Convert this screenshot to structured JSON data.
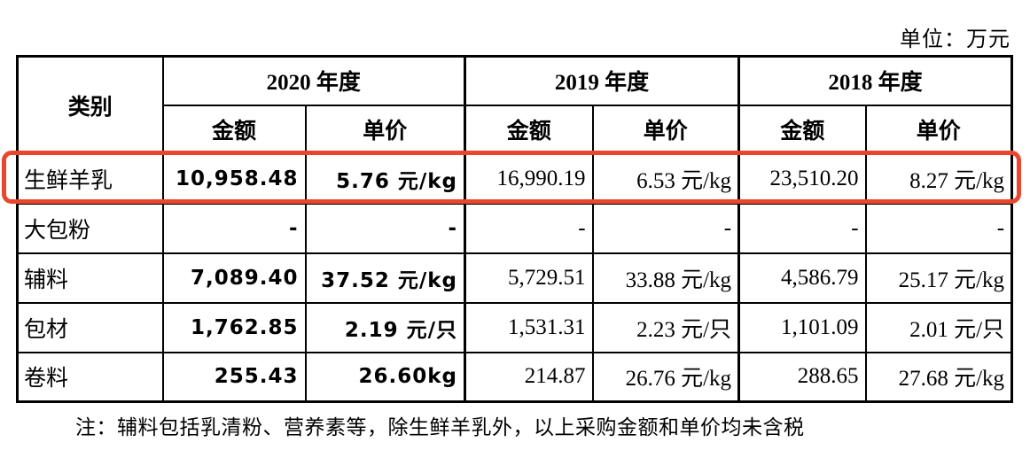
{
  "unit_label": "单位：万元",
  "highlight": {
    "color": "#e8472e",
    "target_row": "生鲜羊乳"
  },
  "table": {
    "category_header": "类别",
    "year_groups": [
      {
        "label": "2020 年度",
        "sub": [
          "金额",
          "单价"
        ]
      },
      {
        "label": "2019 年度",
        "sub": [
          "金额",
          "单价"
        ]
      },
      {
        "label": "2018 年度",
        "sub": [
          "金额",
          "单价"
        ]
      }
    ],
    "rows": [
      {
        "category": "生鲜羊乳",
        "highlighted": true,
        "values": [
          "10,958.48",
          "5.76 元/kg",
          "16,990.19",
          "6.53 元/kg",
          "23,510.20",
          "8.27 元/kg"
        ]
      },
      {
        "category": "大包粉",
        "highlighted": false,
        "values": [
          "-",
          "-",
          "-",
          "-",
          "-",
          "-"
        ]
      },
      {
        "category": "辅料",
        "highlighted": false,
        "values": [
          "7,089.40",
          "37.52 元/kg",
          "5,729.51",
          "33.88 元/kg",
          "4,586.79",
          "25.17 元/kg"
        ]
      },
      {
        "category": "包材",
        "highlighted": false,
        "values": [
          "1,762.85",
          "2.19 元/只",
          "1,531.31",
          "2.23 元/只",
          "1,101.09",
          "2.01 元/只"
        ]
      },
      {
        "category": "卷料",
        "highlighted": false,
        "values": [
          "255.43",
          "26.60kg",
          "214.87",
          "26.76 元/kg",
          "288.65",
          "27.68 元/kg"
        ]
      }
    ]
  },
  "footnote": "注：辅料包括乳清粉、营养素等，除生鲜羊乳外，以上采购金额和单价均未含税"
}
